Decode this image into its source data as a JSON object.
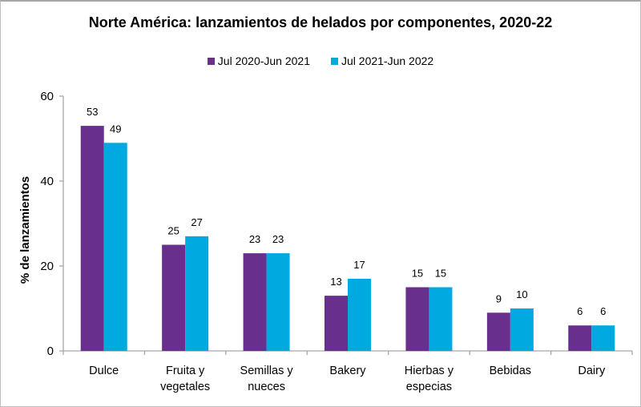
{
  "chart_data": {
    "type": "bar",
    "title": "Norte América: lanzamientos de helados por componentes, 2020-22",
    "xlabel": "",
    "ylabel": "% de lanzamientos",
    "ylim": [
      0,
      60
    ],
    "yticks": [
      0,
      20,
      40,
      60
    ],
    "grid": false,
    "legend_position": "top",
    "categories": [
      [
        "Dulce"
      ],
      [
        "Fruita y",
        "vegetales"
      ],
      [
        "Semillas y",
        "nueces"
      ],
      [
        "Bakery"
      ],
      [
        "Hierbas y",
        "especias"
      ],
      [
        "Bebidas"
      ],
      [
        "Dairy"
      ]
    ],
    "series": [
      {
        "name": "Jul 2020-Jun 2021",
        "color": "#68308c",
        "values": [
          53,
          25,
          23,
          13,
          15,
          9,
          6
        ]
      },
      {
        "name": "Jul 2021-Jun 2022",
        "color": "#00a9e0",
        "values": [
          49,
          27,
          23,
          17,
          15,
          10,
          6
        ]
      }
    ]
  }
}
